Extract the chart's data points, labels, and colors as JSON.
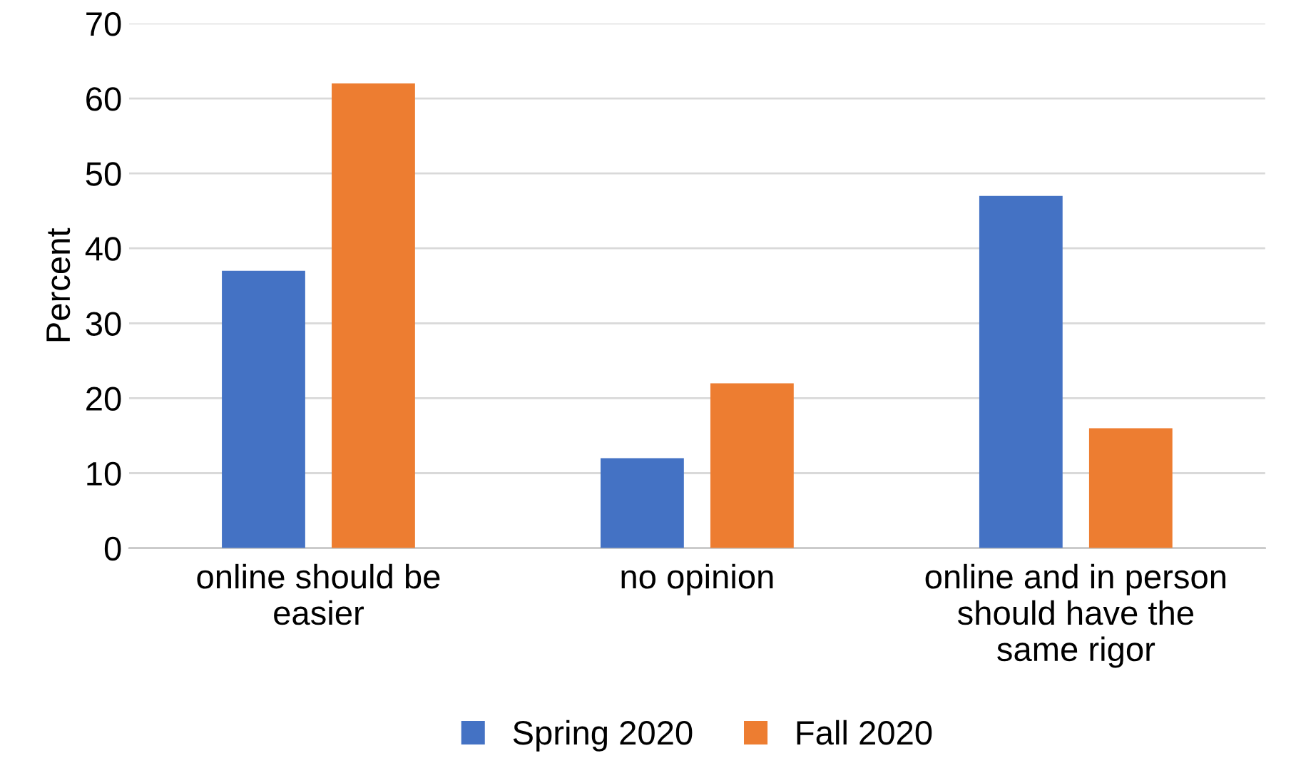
{
  "chart_data": {
    "type": "bar",
    "ylabel": "Percent",
    "categories": [
      "online should be\neasier",
      "no opinion",
      "online and in person\nshould have the\nsame rigor"
    ],
    "series": [
      {
        "name": "Spring 2020",
        "color": "#4472c4",
        "values": [
          37,
          12,
          47
        ]
      },
      {
        "name": "Fall 2020",
        "color": "#ed7d31",
        "values": [
          62,
          22,
          16
        ]
      }
    ],
    "ylim": [
      0,
      70
    ],
    "yticks": [
      0,
      10,
      20,
      30,
      40,
      50,
      60,
      70
    ],
    "grid": "y",
    "legend": "bottom"
  }
}
